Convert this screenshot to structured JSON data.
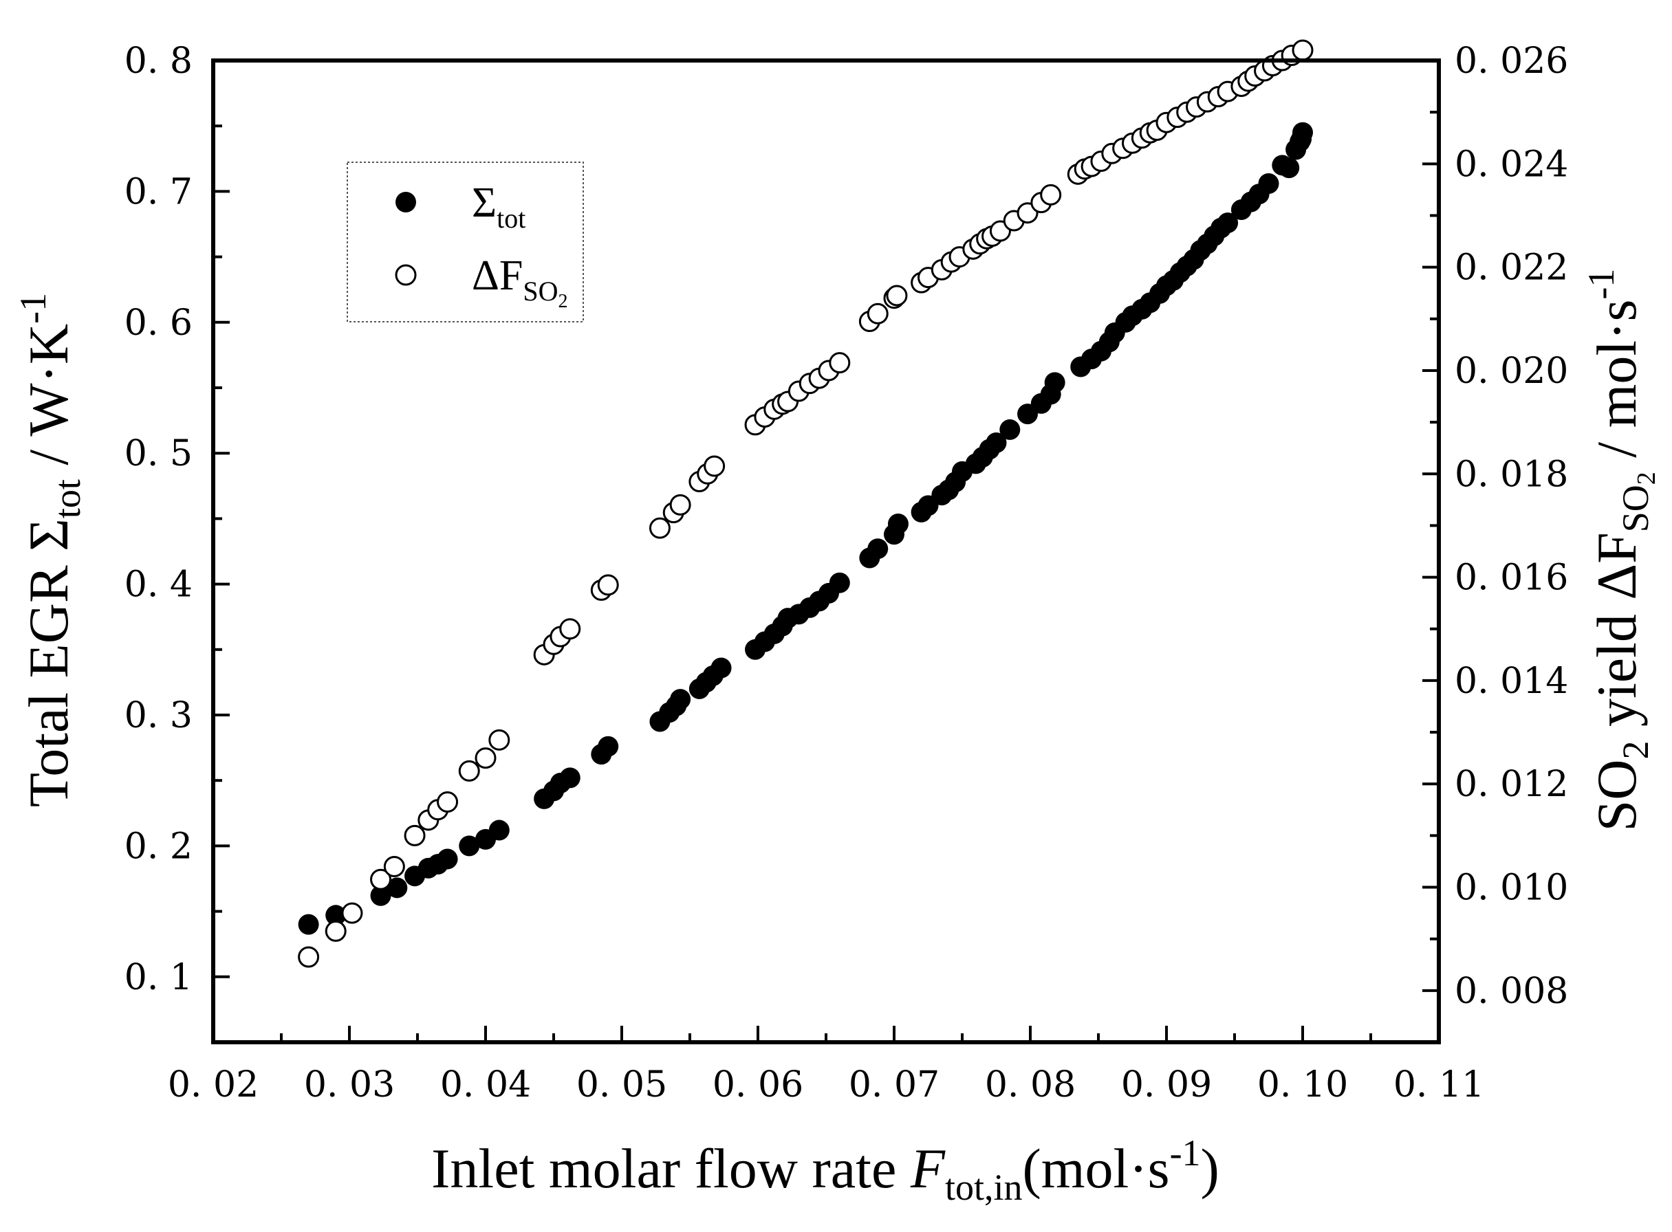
{
  "chart_data": {
    "type": "scatter",
    "xlabel": {
      "main": "Inlet molar flow rate ",
      "var": "F",
      "sub": "tot,in",
      "unit_open": "(mol·s",
      "sup": "-1",
      "unit_close": ")"
    },
    "ylabel_left": {
      "main": "Total EGR Σ",
      "sub": "tot",
      "unit": " / W·K",
      "sup": "-1"
    },
    "ylabel_right": {
      "main": "SO",
      "sub1": "2",
      "mid": " yield ΔF",
      "sub2": "SO",
      "sub2b": "2",
      "unit": " / mol·s",
      "sup": "-1"
    },
    "x_range": [
      0.02,
      0.11
    ],
    "x_ticks": [
      "0.02",
      "0.03",
      "0.04",
      "0.05",
      "0.06",
      "0.07",
      "0.08",
      "0.09",
      "0.10",
      "0.11"
    ],
    "x_tick_values": [
      0.02,
      0.03,
      0.04,
      0.05,
      0.06,
      0.07,
      0.08,
      0.09,
      0.1,
      0.11
    ],
    "y_left_range": [
      0.05,
      0.8
    ],
    "y_left_ticks": [
      "0.1",
      "0.2",
      "0.3",
      "0.4",
      "0.5",
      "0.6",
      "0.7",
      "0.8"
    ],
    "y_left_tick_values": [
      0.1,
      0.2,
      0.3,
      0.4,
      0.5,
      0.6,
      0.7,
      0.8
    ],
    "y_right_range": [
      0.007,
      0.026
    ],
    "y_right_ticks": [
      "0.008",
      "0.010",
      "0.012",
      "0.014",
      "0.016",
      "0.018",
      "0.020",
      "0.022",
      "0.024",
      "0.026"
    ],
    "y_right_tick_values": [
      0.008,
      0.01,
      0.012,
      0.014,
      0.016,
      0.018,
      0.02,
      0.022,
      0.024,
      0.026
    ],
    "legend": {
      "position": "top-left",
      "entries": [
        {
          "label": "Σ",
          "sub": "tot",
          "marker": "filled-circle"
        },
        {
          "label": "ΔF",
          "sub": "SO",
          "sub2": "2",
          "marker": "open-circle"
        }
      ]
    },
    "series": [
      {
        "name": "Σtot",
        "axis": "left",
        "marker": "filled",
        "x": [
          0.027,
          0.029,
          0.0323,
          0.0335,
          0.0348,
          0.0358,
          0.0365,
          0.0372,
          0.0388,
          0.04,
          0.041,
          0.0443,
          0.045,
          0.0455,
          0.0462,
          0.0485,
          0.049,
          0.0528,
          0.0535,
          0.054,
          0.0543,
          0.0557,
          0.0562,
          0.0567,
          0.0573,
          0.0598,
          0.0605,
          0.0612,
          0.0618,
          0.0622,
          0.063,
          0.0638,
          0.0645,
          0.0652,
          0.066,
          0.0682,
          0.0688,
          0.07,
          0.0703,
          0.072,
          0.0725,
          0.0735,
          0.074,
          0.0745,
          0.075,
          0.076,
          0.0765,
          0.077,
          0.0775,
          0.0785,
          0.0798,
          0.0808,
          0.0815,
          0.0818,
          0.0837,
          0.0845,
          0.0852,
          0.0858,
          0.0862,
          0.087,
          0.0875,
          0.0882,
          0.0888,
          0.0895,
          0.09,
          0.0905,
          0.091,
          0.0915,
          0.092,
          0.0925,
          0.093,
          0.0935,
          0.094,
          0.0945,
          0.0955,
          0.0962,
          0.0968,
          0.0975,
          0.0985,
          0.099,
          0.0995,
          0.0998,
          0.0999,
          0.1
        ],
        "y": [
          0.14,
          0.147,
          0.162,
          0.168,
          0.177,
          0.183,
          0.186,
          0.19,
          0.2,
          0.205,
          0.212,
          0.236,
          0.242,
          0.248,
          0.252,
          0.27,
          0.276,
          0.295,
          0.302,
          0.307,
          0.312,
          0.32,
          0.325,
          0.33,
          0.336,
          0.35,
          0.356,
          0.362,
          0.368,
          0.374,
          0.377,
          0.382,
          0.387,
          0.393,
          0.401,
          0.42,
          0.427,
          0.438,
          0.446,
          0.455,
          0.46,
          0.468,
          0.472,
          0.478,
          0.486,
          0.492,
          0.497,
          0.503,
          0.508,
          0.518,
          0.53,
          0.538,
          0.545,
          0.554,
          0.566,
          0.572,
          0.578,
          0.585,
          0.592,
          0.6,
          0.605,
          0.61,
          0.615,
          0.622,
          0.628,
          0.632,
          0.638,
          0.643,
          0.648,
          0.655,
          0.66,
          0.666,
          0.672,
          0.676,
          0.686,
          0.692,
          0.698,
          0.706,
          0.72,
          0.718,
          0.732,
          0.738,
          0.74,
          0.745
        ]
      },
      {
        "name": "ΔFSO2",
        "axis": "right",
        "marker": "open",
        "x": [
          0.027,
          0.029,
          0.0302,
          0.0323,
          0.0333,
          0.0348,
          0.0358,
          0.0365,
          0.0372,
          0.0388,
          0.04,
          0.041,
          0.0443,
          0.045,
          0.0455,
          0.0462,
          0.0485,
          0.049,
          0.0528,
          0.0538,
          0.0543,
          0.0557,
          0.0563,
          0.0568,
          0.0598,
          0.0605,
          0.0612,
          0.0618,
          0.0622,
          0.063,
          0.0638,
          0.0645,
          0.0652,
          0.066,
          0.0682,
          0.0688,
          0.07,
          0.0702,
          0.072,
          0.0725,
          0.0735,
          0.0742,
          0.0748,
          0.0758,
          0.0763,
          0.0768,
          0.0772,
          0.0778,
          0.0788,
          0.0798,
          0.0808,
          0.0815,
          0.0835,
          0.084,
          0.0845,
          0.0852,
          0.086,
          0.0868,
          0.0875,
          0.0882,
          0.0888,
          0.0893,
          0.09,
          0.0908,
          0.0915,
          0.0922,
          0.093,
          0.0938,
          0.0945,
          0.0955,
          0.096,
          0.0965,
          0.0972,
          0.0978,
          0.0985,
          0.0992,
          0.1
        ],
        "y": [
          0.00865,
          0.00915,
          0.0095,
          0.01015,
          0.0104,
          0.011,
          0.0113,
          0.0115,
          0.01165,
          0.01225,
          0.0125,
          0.01285,
          0.0145,
          0.0147,
          0.01485,
          0.015,
          0.01575,
          0.01585,
          0.01695,
          0.01725,
          0.0174,
          0.01785,
          0.018,
          0.01815,
          0.01895,
          0.0191,
          0.01925,
          0.01935,
          0.0194,
          0.0196,
          0.01975,
          0.01985,
          0.02,
          0.02015,
          0.02095,
          0.0211,
          0.0214,
          0.02145,
          0.0217,
          0.0218,
          0.02195,
          0.0221,
          0.0222,
          0.02235,
          0.02245,
          0.02255,
          0.0226,
          0.0227,
          0.0229,
          0.02305,
          0.02325,
          0.0234,
          0.0238,
          0.0239,
          0.02395,
          0.02405,
          0.0242,
          0.0243,
          0.0244,
          0.0245,
          0.0246,
          0.02465,
          0.0248,
          0.0249,
          0.025,
          0.0251,
          0.0252,
          0.0253,
          0.0254,
          0.0255,
          0.0256,
          0.0257,
          0.0258,
          0.0259,
          0.026,
          0.0261,
          0.0262
        ]
      }
    ]
  }
}
